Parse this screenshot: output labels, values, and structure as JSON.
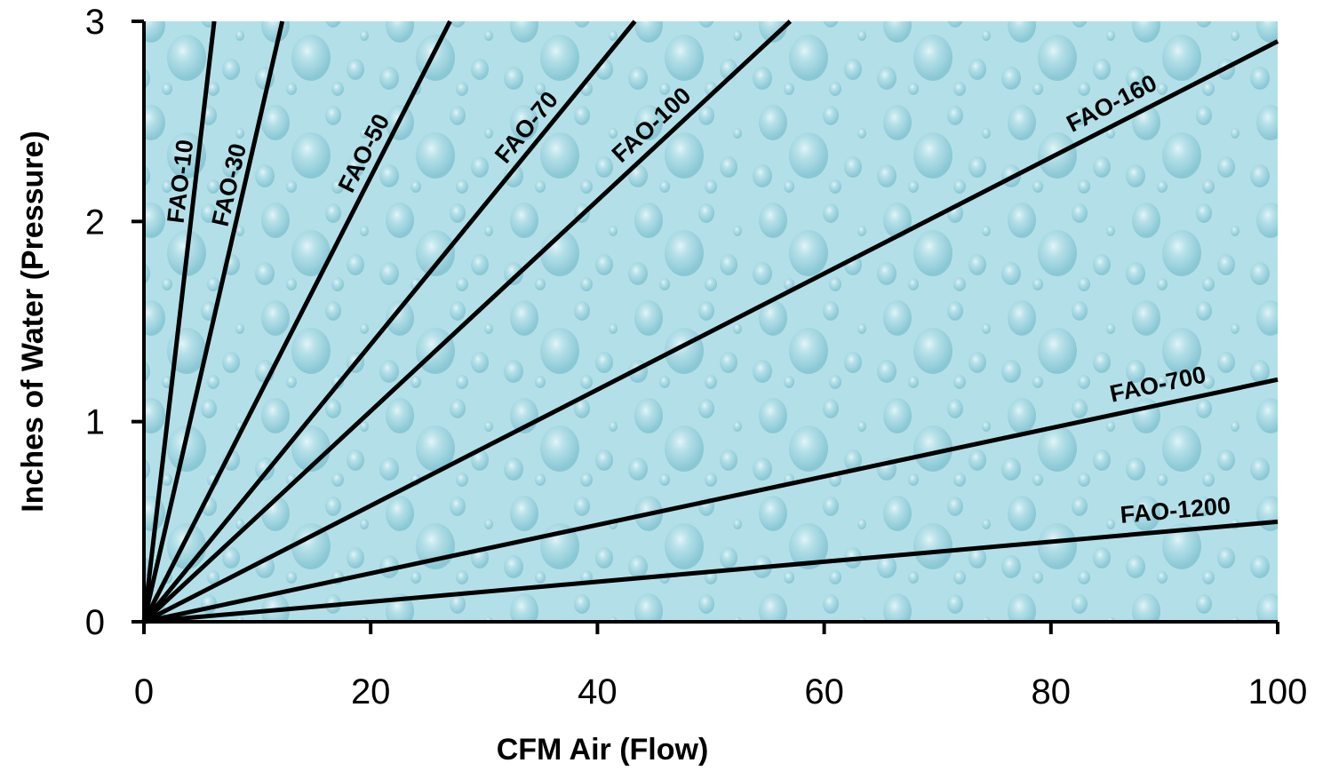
{
  "chart_data": {
    "type": "line",
    "title": "",
    "xlabel": "CFM Air (Flow)",
    "ylabel": "Inches of Water (Pressure)",
    "xlim": [
      0,
      100
    ],
    "ylim": [
      0,
      3
    ],
    "x_ticks": [
      "0",
      "20",
      "40",
      "60",
      "80",
      "100"
    ],
    "y_ticks": [
      "0",
      "1",
      "2",
      "3"
    ],
    "grid": false,
    "legend": "none (inline labels on lines)",
    "background": "water-droplet texture, light aqua",
    "colors": {
      "plot_bg": "#aedde6",
      "line": "#000000"
    },
    "series": [
      {
        "name": "FAO-10",
        "x": [
          0,
          6.2
        ],
        "y": [
          0,
          3.0
        ]
      },
      {
        "name": "FAO-30",
        "x": [
          0,
          12.2
        ],
        "y": [
          0,
          3.0
        ]
      },
      {
        "name": "FAO-50",
        "x": [
          0,
          27.0
        ],
        "y": [
          0,
          3.0
        ]
      },
      {
        "name": "FAO-70",
        "x": [
          0,
          43.3
        ],
        "y": [
          0,
          3.0
        ]
      },
      {
        "name": "FAO-100",
        "x": [
          0,
          57.0
        ],
        "y": [
          0,
          3.0
        ]
      },
      {
        "name": "FAO-160",
        "x": [
          0,
          100
        ],
        "y": [
          0,
          2.9
        ]
      },
      {
        "name": "FAO-700",
        "x": [
          0,
          100
        ],
        "y": [
          0,
          1.21
        ]
      },
      {
        "name": "FAO-1200",
        "x": [
          0,
          100
        ],
        "y": [
          0,
          0.5
        ]
      }
    ]
  }
}
